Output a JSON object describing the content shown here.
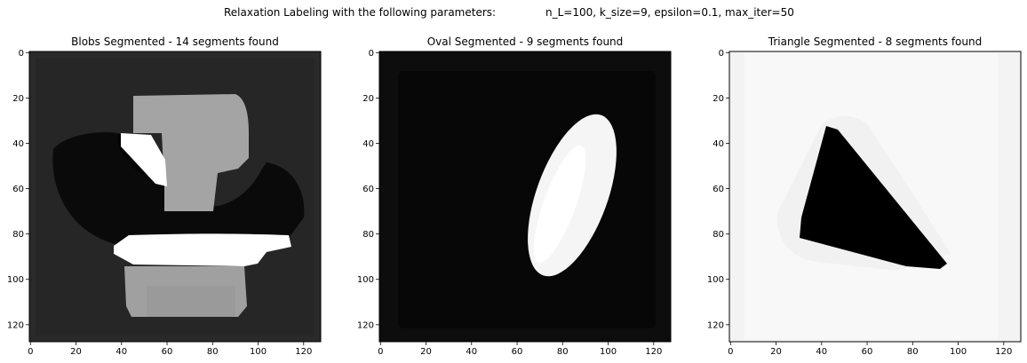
{
  "suptitle": {
    "left": "Relaxation Labeling with the following parameters:",
    "right": "n_L=100, k_size=9, epsilon=0.1, max_iter=50"
  },
  "panels": [
    {
      "title": "Blobs Segmented - 14 segments found"
    },
    {
      "title": "Oval Segmented - 9 segments found"
    },
    {
      "title": "Triangle Segmented - 8 segments found"
    }
  ],
  "chart_data": [
    {
      "type": "heatmap",
      "title": "Blobs Segmented - 14 segments found",
      "colormap": "gray",
      "xlim": [
        0,
        127
      ],
      "ylim": [
        127,
        0
      ],
      "xticks": [
        0,
        20,
        40,
        60,
        80,
        100,
        120
      ],
      "yticks": [
        0,
        20,
        40,
        60,
        80,
        100,
        120
      ],
      "segments": 14
    },
    {
      "type": "heatmap",
      "title": "Oval Segmented - 9 segments found",
      "colormap": "gray",
      "xlim": [
        0,
        127
      ],
      "ylim": [
        127,
        0
      ],
      "xticks": [
        0,
        20,
        40,
        60,
        80,
        100,
        120
      ],
      "yticks": [
        0,
        20,
        40,
        60,
        80,
        100,
        120
      ],
      "segments": 9
    },
    {
      "type": "heatmap",
      "title": "Triangle Segmented - 8 segments found",
      "colormap": "gray",
      "xlim": [
        0,
        127
      ],
      "ylim": [
        127,
        0
      ],
      "xticks": [
        0,
        20,
        40,
        60,
        80,
        100,
        120
      ],
      "yticks": [
        0,
        20,
        40,
        60,
        80,
        100,
        120
      ],
      "segments": 8
    }
  ]
}
